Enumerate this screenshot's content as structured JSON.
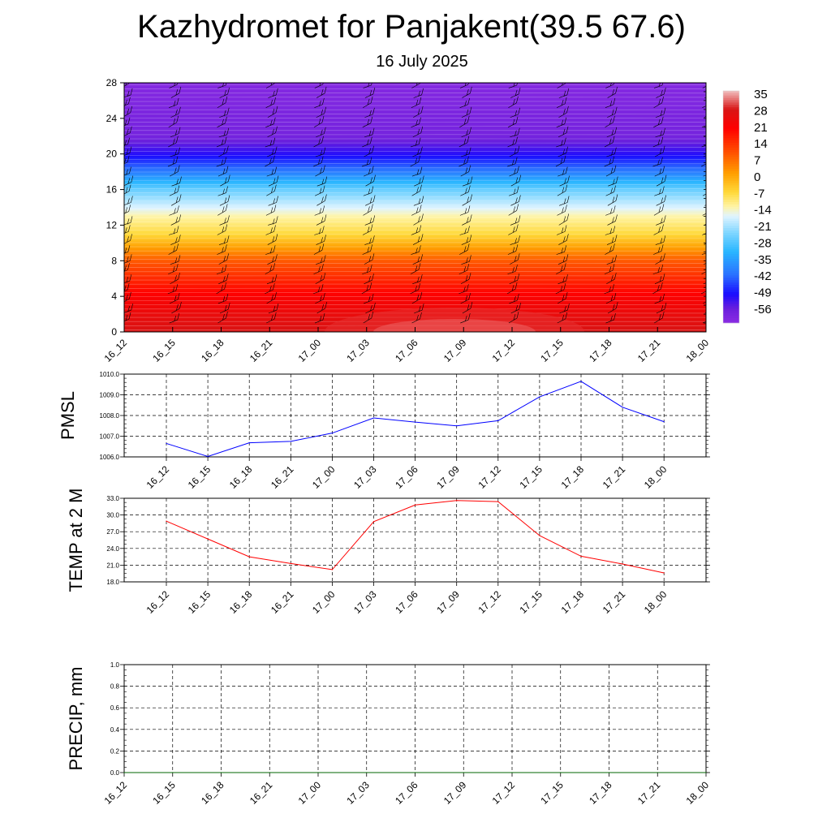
{
  "title": "Kazhydromet for Panjakent(39.5 67.6)",
  "subtitle": "16 July 2025",
  "time_labels": [
    "16_12",
    "16_15",
    "16_18",
    "16_21",
    "17_00",
    "17_03",
    "17_06",
    "17_09",
    "17_12",
    "17_15",
    "17_18",
    "17_21",
    "18_00"
  ],
  "colors": {
    "pmsl_line": "#0000ff",
    "temp_line": "#ff0000",
    "precip_line": "#006400"
  },
  "chart_data": [
    {
      "type": "heatmap",
      "name": "vertical temperature cross-section with wind barbs",
      "x": [
        "16_12",
        "16_15",
        "16_18",
        "16_21",
        "17_00",
        "17_03",
        "17_06",
        "17_09",
        "17_12",
        "17_15",
        "17_18",
        "17_21",
        "18_00"
      ],
      "y_ticks": [
        0,
        4,
        8,
        12,
        16,
        20,
        24,
        28
      ],
      "ylim": [
        0,
        28
      ],
      "colorbar_labels": [
        "35",
        "28",
        "21",
        "14",
        "7",
        "0",
        "-7",
        "-14",
        "-21",
        "-28",
        "-35",
        "-42",
        "-49",
        "-56"
      ],
      "colorbar_range": [
        -60,
        38
      ],
      "colorscale": [
        {
          "v": -60,
          "c": "#8a2be2"
        },
        {
          "v": -54,
          "c": "#6a1fdc"
        },
        {
          "v": -48,
          "c": "#1a0bff"
        },
        {
          "v": -40,
          "c": "#2a6fff"
        },
        {
          "v": -30,
          "c": "#29b6ff"
        },
        {
          "v": -22,
          "c": "#7fd6ff"
        },
        {
          "v": -15,
          "c": "#e0f4ff"
        },
        {
          "v": -11,
          "c": "#fff4a6"
        },
        {
          "v": -5,
          "c": "#ffd93a"
        },
        {
          "v": 3,
          "c": "#ff9f00"
        },
        {
          "v": 12,
          "c": "#ff5000"
        },
        {
          "v": 22,
          "c": "#ff0000"
        },
        {
          "v": 30,
          "c": "#d91414"
        },
        {
          "v": 38,
          "c": "#f0c0c0"
        }
      ],
      "profile": [
        [
          0,
          30
        ],
        [
          4,
          23
        ],
        [
          8,
          11
        ],
        [
          11,
          -5
        ],
        [
          13,
          -11
        ],
        [
          16,
          -24
        ],
        [
          18,
          -38
        ],
        [
          20,
          -49
        ],
        [
          22,
          -56
        ],
        [
          28,
          -59
        ]
      ]
    },
    {
      "type": "line",
      "ylabel": "PMSL",
      "x": [
        "16_12",
        "16_15",
        "16_18",
        "16_21",
        "17_00",
        "17_03",
        "17_06",
        "17_09",
        "17_12",
        "17_15",
        "17_18",
        "17_21",
        "18_00"
      ],
      "y_ticks": [
        "1006.0",
        "1007.0",
        "1008.0",
        "1009.0",
        "1010.0"
      ],
      "ylim": [
        1006,
        1010
      ],
      "values": [
        1006.65,
        1006.02,
        1006.68,
        1006.75,
        1007.15,
        1007.88,
        1007.68,
        1007.5,
        1007.75,
        1008.9,
        1009.65,
        1008.4,
        1007.7
      ]
    },
    {
      "type": "line",
      "ylabel": "TEMP at 2 M",
      "x": [
        "16_12",
        "16_15",
        "16_18",
        "16_21",
        "17_00",
        "17_03",
        "17_06",
        "17_09",
        "17_12",
        "17_15",
        "17_18",
        "17_21",
        "18_00"
      ],
      "y_ticks": [
        "18.0",
        "21.0",
        "24.0",
        "27.0",
        "30.0",
        "33.0"
      ],
      "ylim": [
        18,
        33
      ],
      "values": [
        28.9,
        25.7,
        22.5,
        21.3,
        20.2,
        28.8,
        31.8,
        32.6,
        32.4,
        26.3,
        22.6,
        21.2,
        19.6
      ]
    },
    {
      "type": "line",
      "ylabel": "PRECIP, mm",
      "x": [
        "16_12",
        "16_15",
        "16_18",
        "16_21",
        "17_00",
        "17_03",
        "17_06",
        "17_09",
        "17_12",
        "17_15",
        "17_18",
        "17_21",
        "18_00"
      ],
      "y_ticks": [
        "0.0",
        "0.2",
        "0.4",
        "0.6",
        "0.8",
        "1.0"
      ],
      "ylim": [
        0,
        1
      ],
      "values": [
        0,
        0,
        0,
        0,
        0,
        0,
        0,
        0,
        0,
        0,
        0,
        0,
        0
      ]
    }
  ]
}
